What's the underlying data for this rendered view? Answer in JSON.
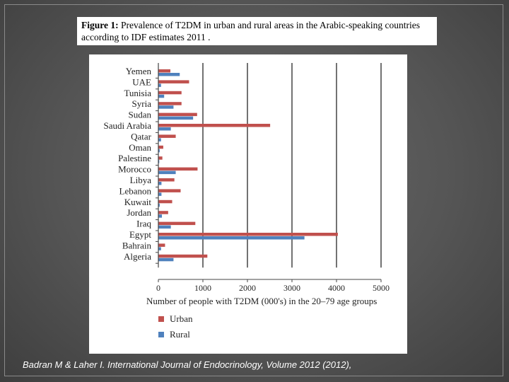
{
  "caption": {
    "label": "Figure 1:",
    "text": " Prevalence of T2DM in urban and rural areas in the Arabic-speaking countries according to IDF estimates 2011 ."
  },
  "source": "Badran M & Laher I.  International Journal of Endocrinology, Volume 2012 (2012),",
  "colors": {
    "urban": "#c0504d",
    "rural": "#4f81bd"
  },
  "chart_data": {
    "type": "bar",
    "orientation": "horizontal",
    "categories": [
      "Yemen",
      "UAE",
      "Tunisia",
      "Syria",
      "Sudan",
      "Saudi Arabia",
      "Qatar",
      "Oman",
      "Palestine",
      "Morocco",
      "Libya",
      "Lebanon",
      "Kuwait",
      "Jordan",
      "Iraq",
      "Egypt",
      "Bahrain",
      "Algeria"
    ],
    "series": [
      {
        "name": "Urban",
        "values": [
          270,
          690,
          520,
          520,
          870,
          2510,
          390,
          110,
          90,
          880,
          360,
          500,
          310,
          220,
          830,
          4030,
          150,
          1100
        ]
      },
      {
        "name": "Rural",
        "values": [
          480,
          60,
          130,
          340,
          780,
          280,
          60,
          30,
          20,
          390,
          70,
          70,
          30,
          80,
          280,
          3280,
          60,
          340
        ]
      }
    ],
    "xlabel": "Number of people with T2DM (000's) in the 20–79 age groups",
    "xlim": [
      0,
      5000
    ],
    "xticks": [
      0,
      1000,
      2000,
      3000,
      4000,
      5000
    ],
    "grid": true,
    "legend_placement": "bottom-left"
  }
}
